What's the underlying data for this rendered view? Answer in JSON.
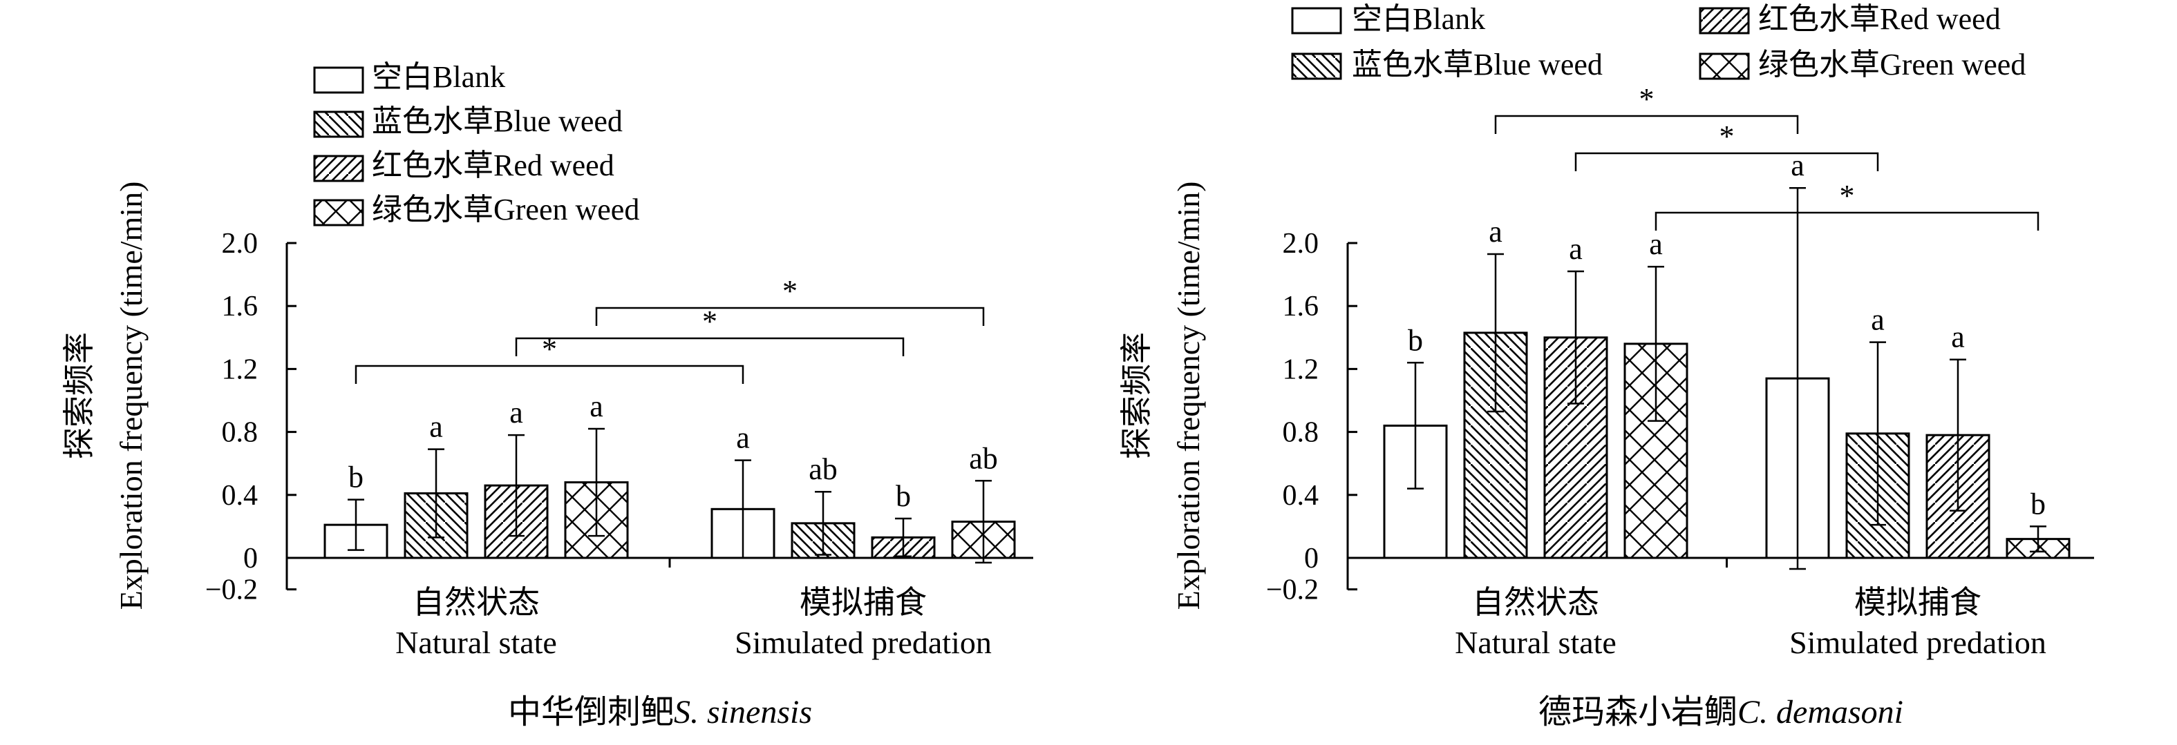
{
  "legend": {
    "blank": "空白Blank",
    "blue": "蓝色水草Blue weed",
    "red": "红色水草Red weed",
    "green": "绿色水草Green weed"
  },
  "chart_data": [
    {
      "type": "bar",
      "title": "中华倒刺鲃",
      "title_species": "S. sinensis",
      "ylabel_cn": "探索频率",
      "ylabel_en": "Exploration frequency (time/min)",
      "ylim": [
        -0.2,
        2.0
      ],
      "yticks": [
        -0.2,
        0,
        0.4,
        0.8,
        1.2,
        1.6,
        2.0
      ],
      "ytick_labels": [
        "−0.2",
        "0",
        "0.4",
        "0.8",
        "1.2",
        "1.6",
        "2.0"
      ],
      "groups": [
        {
          "label_cn": "自然状态",
          "label_en": "Natural state"
        },
        {
          "label_cn": "模拟捕食",
          "label_en": "Simulated predation"
        }
      ],
      "series": [
        {
          "key": "blank",
          "name": "空白Blank",
          "values": [
            0.21,
            0.31
          ],
          "errors": [
            0.16,
            0.31
          ],
          "letters": [
            "b",
            "a"
          ]
        },
        {
          "key": "blue",
          "name": "蓝色水草Blue weed",
          "values": [
            0.41,
            0.22
          ],
          "errors": [
            0.28,
            0.2
          ],
          "letters": [
            "a",
            "ab"
          ]
        },
        {
          "key": "red",
          "name": "红色水草Red weed",
          "values": [
            0.46,
            0.13
          ],
          "errors": [
            0.32,
            0.12
          ],
          "letters": [
            "a",
            "b"
          ]
        },
        {
          "key": "green",
          "name": "绿色水草Green weed",
          "values": [
            0.48,
            0.23
          ],
          "errors": [
            0.34,
            0.26
          ],
          "letters": [
            "a",
            "ab"
          ]
        }
      ],
      "significance": [
        {
          "from": "blank@0",
          "to": "blank@1",
          "label": "*"
        },
        {
          "from": "red@0",
          "to": "red@1",
          "label": "*"
        },
        {
          "from": "green@0",
          "to": "green@1",
          "label": "*"
        }
      ]
    },
    {
      "type": "bar",
      "title": "德玛森小岩鲷",
      "title_species": "C. demasoni",
      "ylabel_cn": "探索频率",
      "ylabel_en": "Exploration frequency (time/min)",
      "ylim": [
        -0.2,
        2.0
      ],
      "yticks": [
        -0.2,
        0,
        0.4,
        0.8,
        1.2,
        1.6,
        2.0
      ],
      "ytick_labels": [
        "−0.2",
        "0",
        "0.4",
        "0.8",
        "1.2",
        "1.6",
        "2.0"
      ],
      "groups": [
        {
          "label_cn": "自然状态",
          "label_en": "Natural state"
        },
        {
          "label_cn": "模拟捕食",
          "label_en": "Simulated predation"
        }
      ],
      "series": [
        {
          "key": "blank",
          "name": "空白Blank",
          "values": [
            0.84,
            1.14
          ],
          "errors": [
            0.4,
            1.21
          ],
          "letters": [
            "b",
            "a"
          ]
        },
        {
          "key": "blue",
          "name": "蓝色水草Blue weed",
          "values": [
            1.43,
            0.79
          ],
          "errors": [
            0.5,
            0.58
          ],
          "letters": [
            "a",
            "a"
          ]
        },
        {
          "key": "red",
          "name": "红色水草Red weed",
          "values": [
            1.4,
            0.78
          ],
          "errors": [
            0.42,
            0.48
          ],
          "letters": [
            "a",
            "a"
          ]
        },
        {
          "key": "green",
          "name": "绿色水草Green weed",
          "values": [
            1.36,
            0.12
          ],
          "errors": [
            0.49,
            0.08
          ],
          "letters": [
            "a",
            "b"
          ]
        }
      ],
      "significance": [
        {
          "from": "blue@0",
          "to": "blank@1",
          "label": "*"
        },
        {
          "from": "red@0",
          "to": "blue@1",
          "label": "*"
        },
        {
          "from": "green@0",
          "to": "green@1",
          "label": "*"
        }
      ]
    }
  ]
}
